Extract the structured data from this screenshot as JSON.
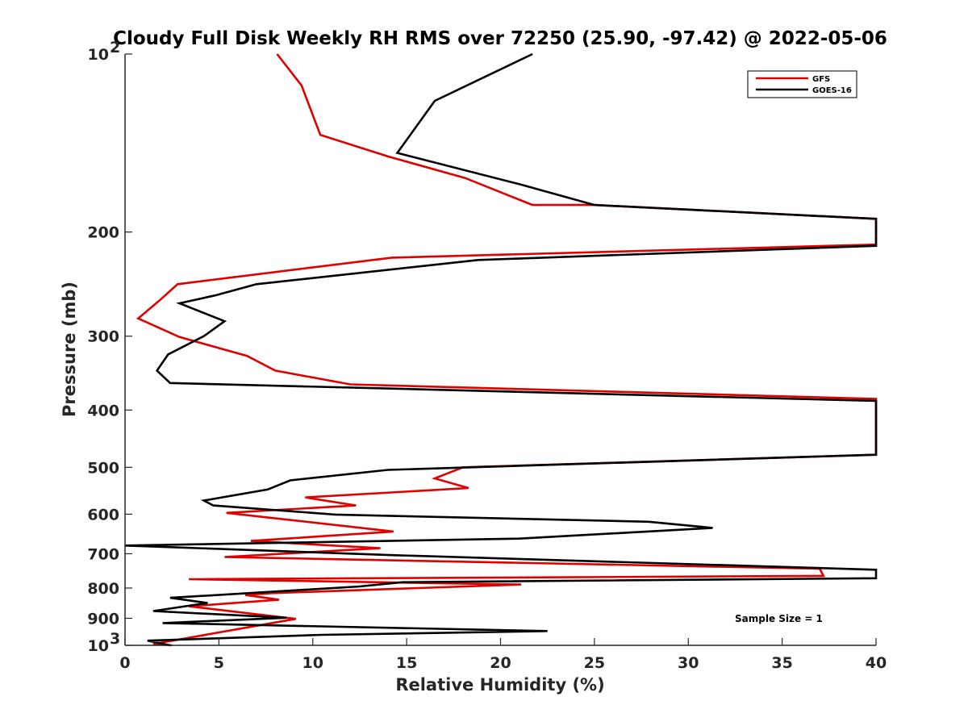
{
  "chart_data": {
    "type": "line",
    "title": "Cloudy Full Disk Weekly RH RMS over 72250 (25.90, -97.42) @ 2022-05-06",
    "xlabel": "Relative Humidity (%)",
    "ylabel": "Pressure (mb)",
    "xlim": [
      0,
      40
    ],
    "ylim": [
      100,
      1000
    ],
    "y_scale": "log",
    "y_reversed": true,
    "x_ticks": [
      0,
      5,
      10,
      15,
      20,
      25,
      30,
      35,
      40
    ],
    "y_ticks": [
      {
        "value": 100,
        "base": "10",
        "exp": "2"
      },
      {
        "value": 200,
        "label": "200"
      },
      {
        "value": 300,
        "label": "300"
      },
      {
        "value": 400,
        "label": "400"
      },
      {
        "value": 500,
        "label": "500"
      },
      {
        "value": 600,
        "label": "600"
      },
      {
        "value": 700,
        "label": "700"
      },
      {
        "value": 800,
        "label": "800"
      },
      {
        "value": 900,
        "label": "900"
      },
      {
        "value": 1000,
        "base": "10",
        "exp": "3"
      }
    ],
    "grid": false,
    "legend_position": "top-right",
    "annotation": "Sample Size = 1",
    "series": [
      {
        "name": "GFS",
        "color": "#e00000",
        "points": [
          [
            8.1,
            100
          ],
          [
            9.4,
            113
          ],
          [
            10.4,
            137
          ],
          [
            14.0,
            149
          ],
          [
            18.1,
            162
          ],
          [
            21.7,
            180
          ],
          [
            25.0,
            180
          ],
          [
            40,
            190
          ],
          [
            40,
            210
          ],
          [
            14.2,
            221
          ],
          [
            2.8,
            245
          ],
          [
            1.9,
            260
          ],
          [
            0.7,
            280
          ],
          [
            2.9,
            301
          ],
          [
            6.5,
            324
          ],
          [
            8.0,
            343
          ],
          [
            12.0,
            362
          ],
          [
            40,
            383
          ],
          [
            40,
            476
          ],
          [
            18.0,
            500
          ],
          [
            16.5,
            522
          ],
          [
            18.3,
            542
          ],
          [
            9.6,
            562
          ],
          [
            12.3,
            580
          ],
          [
            5.4,
            597
          ],
          [
            14.3,
            642
          ],
          [
            6.7,
            666
          ],
          [
            13.6,
            685
          ],
          [
            5.3,
            709
          ],
          [
            37.0,
            742
          ],
          [
            37.2,
            763
          ],
          [
            3.4,
            773
          ],
          [
            21.1,
            789
          ],
          [
            7.8,
            816
          ],
          [
            6.4,
            822
          ],
          [
            8.2,
            837
          ],
          [
            3.4,
            859
          ],
          [
            9.1,
            902
          ],
          [
            1.5,
            995
          ],
          [
            2.5,
            1000
          ]
        ]
      },
      {
        "name": "GOES-16",
        "color": "#000000",
        "points": [
          [
            21.7,
            100
          ],
          [
            16.5,
            120
          ],
          [
            14.5,
            147
          ],
          [
            21.0,
            166
          ],
          [
            25.0,
            180
          ],
          [
            40,
            190
          ],
          [
            40,
            211
          ],
          [
            18.8,
            223
          ],
          [
            7.0,
            245
          ],
          [
            4.8,
            256
          ],
          [
            2.9,
            264
          ],
          [
            5.3,
            283
          ],
          [
            4.2,
            300
          ],
          [
            2.3,
            322
          ],
          [
            1.7,
            343
          ],
          [
            2.4,
            360
          ],
          [
            40,
            386
          ],
          [
            40,
            476
          ],
          [
            14.0,
            505
          ],
          [
            8.8,
            526
          ],
          [
            7.6,
            545
          ],
          [
            4.2,
            569
          ],
          [
            4.7,
            580
          ],
          [
            11.2,
            601
          ],
          [
            27.9,
            618
          ],
          [
            31.3,
            633
          ],
          [
            21.0,
            660
          ],
          [
            0.0,
            678
          ],
          [
            14.4,
            704
          ],
          [
            40,
            745
          ],
          [
            40,
            770
          ],
          [
            14.8,
            782
          ],
          [
            12.5,
            795
          ],
          [
            2.4,
            831
          ],
          [
            4.4,
            848
          ],
          [
            1.5,
            875
          ],
          [
            8.6,
            898
          ],
          [
            2.0,
            917
          ],
          [
            22.5,
            946
          ],
          [
            10.5,
            960
          ],
          [
            1.2,
            982
          ],
          [
            2.4,
            1000
          ]
        ]
      }
    ]
  }
}
